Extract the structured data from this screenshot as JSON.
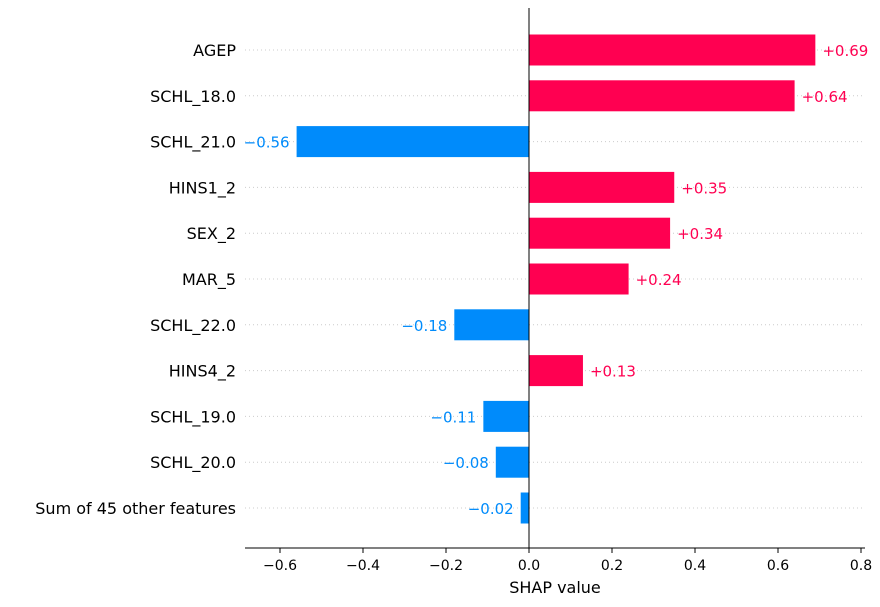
{
  "colors": {
    "positive": "#ff0051",
    "negative": "#008bfb",
    "axis": "#000000",
    "gridline": "#cccccc"
  },
  "chart_data": {
    "type": "bar",
    "orientation": "horizontal",
    "xlabel": "SHAP value",
    "xlim": [
      -0.69,
      0.8
    ],
    "xticks": [
      -0.6,
      -0.4,
      -0.2,
      0.0,
      0.2,
      0.4,
      0.6,
      0.8
    ],
    "xtick_labels": [
      "−0.6",
      "−0.4",
      "−0.2",
      "0.0",
      "0.2",
      "0.4",
      "0.6",
      "0.8"
    ],
    "categories": [
      "AGEP",
      "SCHL_18.0",
      "SCHL_21.0",
      "HINS1_2",
      "SEX_2",
      "MAR_5",
      "SCHL_22.0",
      "HINS4_2",
      "SCHL_19.0",
      "SCHL_20.0",
      "Sum of 45 other features"
    ],
    "values": [
      0.69,
      0.64,
      -0.56,
      0.35,
      0.34,
      0.24,
      -0.18,
      0.13,
      -0.11,
      -0.08,
      -0.02
    ],
    "value_labels": [
      "+0.69",
      "+0.64",
      "−0.56",
      "+0.35",
      "+0.34",
      "+0.24",
      "−0.18",
      "+0.13",
      "−0.11",
      "−0.08",
      "−0.02"
    ],
    "grid": "dotted horizontal guide per row"
  }
}
